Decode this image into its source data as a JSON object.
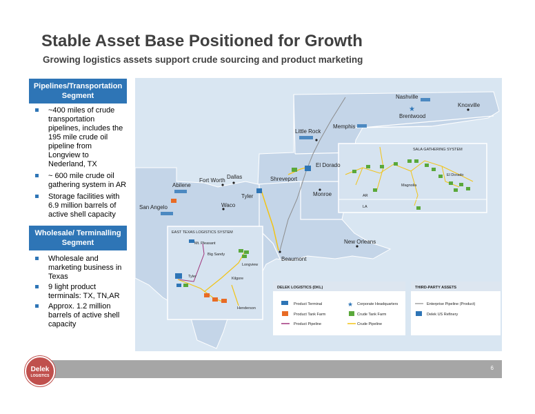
{
  "header": {
    "title": "Stable Asset Base Positioned for Growth",
    "subtitle": "Growing logistics assets support crude sourcing and product marketing"
  },
  "pipelines_segment": {
    "heading_line1": "Pipelines/Transportation",
    "heading_line2": "Segment",
    "bullets": [
      [
        "~400 miles of crude",
        "transportation",
        "pipelines, includes the",
        "195 mile crude oil",
        "pipeline from",
        "Longview to",
        "Nederland, TX"
      ],
      [
        "~ 600 mile crude oil",
        "gathering system in AR"
      ],
      [
        "Storage facilities with",
        "6.9 million barrels of",
        "active shell capacity"
      ]
    ]
  },
  "wholesale_segment": {
    "heading_line1": "Wholesale/ Terminalling",
    "heading_line2": "Segment",
    "bullets": [
      [
        "Wholesale and",
        "marketing business in",
        "Texas"
      ],
      [
        "9 light product",
        "terminals: TX, TN,AR"
      ],
      [
        "Approx. 1.2 million",
        "barrels of active shell",
        "capacity"
      ]
    ]
  },
  "map": {
    "cities": {
      "nashville": "Nashville",
      "brentwood": "Brentwood",
      "knoxville": "Knoxville",
      "memphis": "Memphis",
      "little_rock": "Little Rock",
      "el_dorado": "El Dorado",
      "shreveport": "Shreveport",
      "monroe": "Monroe",
      "fort_worth": "Fort Worth",
      "dallas": "Dallas",
      "abilene": "Abilene",
      "tyler": "Tyler",
      "waco": "Waco",
      "san_angelo": "San Angelo",
      "new_orleans": "New Orleans",
      "beaumont": "Beaumont"
    },
    "sala": {
      "title": "SALA GATHERING SYSTEM",
      "magnolia": "Magnolia",
      "el_dorado": "El Dorado",
      "ar": "AR",
      "la": "LA"
    },
    "east_texas": {
      "title": "EAST TEXAS LOGISTICS SYSTEM",
      "mt_pleasant": "Mt. Pleasant",
      "big_sandy": "Big Sandy",
      "longview": "Longview",
      "tyler": "Tyler",
      "kilgore": "Kilgore",
      "henderson": "Henderson"
    },
    "legend": {
      "dkl_title": "DELEK LOGISTICS (DKL)",
      "third_title": "THIRD-PARTY ASSETS",
      "product_terminal": "Product Terminal",
      "product_tank_farm": "Product Tank Farm",
      "product_pipeline": "Product Pipeline",
      "corporate_hq": "Corporate Headquarters",
      "crude_tank_farm": "Crude Tank Farm",
      "crude_pipeline": "Crude Pipeline",
      "enterprise_pipeline": "Enterprise Pipeline (Product)",
      "delek_refinery": "Delek US Refinery"
    },
    "colors": {
      "land": "#c4d5e8",
      "water": "#d9e6f2",
      "crude_pipeline": "#f2c314",
      "product_pipeline": "#a0327a",
      "enterprise_pipeline": "#8c8c8c",
      "product_tank_farm": "#e86b25",
      "crude_tank_farm": "#5aa83a",
      "terminal": "#2e75b6"
    }
  },
  "footer": {
    "page_number": "6",
    "logo_line1": "Delek",
    "logo_line2": "LOGISTICS"
  }
}
